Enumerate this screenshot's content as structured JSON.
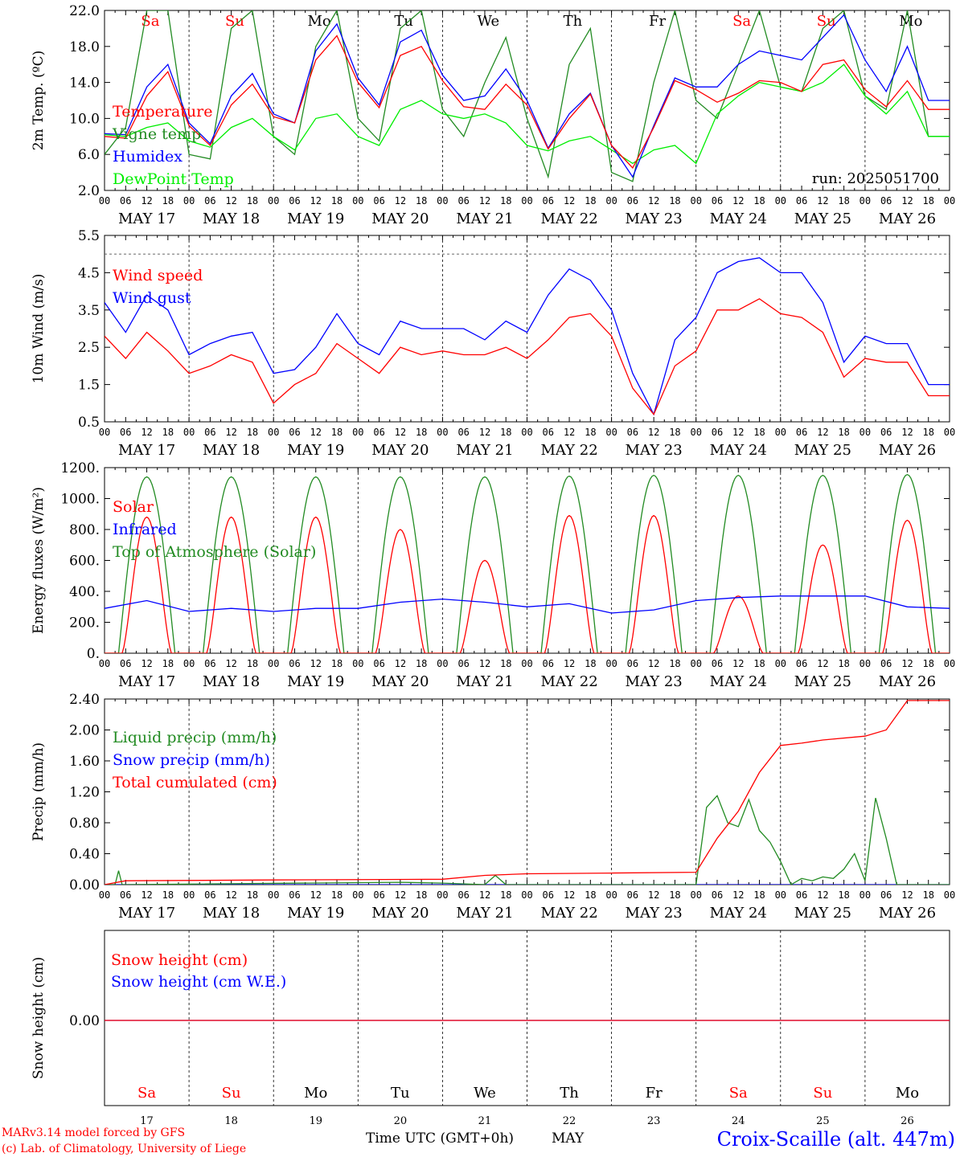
{
  "chart_data": [
    {
      "type": "line",
      "ylabel": "2m Temp. (ºC)",
      "ylim": [
        2.0,
        22.0
      ],
      "yticks": [
        "2.0",
        "6.0",
        "10.0",
        "14.0",
        "18.0",
        "22.0"
      ],
      "run_label": "run: 2025051700",
      "x_hours": [
        0,
        6,
        12,
        18,
        24,
        30,
        36,
        42,
        48,
        54,
        60,
        66,
        72,
        78,
        84,
        90,
        96,
        102,
        108,
        114,
        120,
        126,
        132,
        138,
        144,
        150,
        156,
        162,
        168,
        174,
        180,
        186,
        192,
        198,
        204,
        210,
        216,
        222,
        228,
        234
      ],
      "series": [
        {
          "name": "Temperature",
          "color": "#ff0000",
          "values": [
            8.0,
            7.8,
            12.5,
            15.2,
            9.2,
            7.0,
            11.5,
            13.8,
            10.2,
            9.5,
            16.5,
            19.2,
            14.0,
            11.2,
            17.0,
            18.0,
            14.2,
            11.3,
            11.0,
            13.8,
            11.5,
            6.6,
            10.0,
            12.7,
            7.0,
            4.5,
            9.0,
            14.2,
            13.2,
            11.8,
            12.8,
            14.2,
            14.0,
            13.0,
            16.0,
            16.5,
            13.2,
            11.3,
            14.2,
            11.0
          ]
        },
        {
          "name": "Vigne temp",
          "color": "#228b22",
          "values": [
            6.0,
            9.0,
            22.0,
            22.0,
            6.0,
            5.5,
            20.0,
            22.0,
            8.0,
            6.0,
            18.0,
            22.0,
            10.0,
            7.5,
            20.0,
            22.0,
            11.0,
            8.0,
            14.0,
            19.0,
            10.0,
            3.5,
            16.0,
            20.0,
            4.0,
            3.0,
            14.0,
            22.0,
            12.0,
            10.0,
            16.0,
            22.0,
            13.5,
            13.0,
            20.0,
            22.0,
            12.5,
            11.0,
            22.0,
            8.0
          ]
        },
        {
          "name": "Humidex",
          "color": "#0000ff",
          "values": [
            8.3,
            8.2,
            13.5,
            16.0,
            9.5,
            7.2,
            12.5,
            15.0,
            10.5,
            9.5,
            17.5,
            20.5,
            14.5,
            11.5,
            18.5,
            19.8,
            14.8,
            12.0,
            12.5,
            15.5,
            12.0,
            6.7,
            10.5,
            12.8,
            7.0,
            3.5,
            9.2,
            14.5,
            13.5,
            13.5,
            16.0,
            17.5,
            17.0,
            16.5,
            19.0,
            21.5,
            16.5,
            13.0,
            18.0,
            12.0
          ]
        },
        {
          "name": "DewPoint Temp",
          "color": "#00ee00",
          "values": [
            8.2,
            8.0,
            9.0,
            9.5,
            7.5,
            6.8,
            9.0,
            10.0,
            8.0,
            6.5,
            10.0,
            10.5,
            8.0,
            7.0,
            11.0,
            12.0,
            10.5,
            10.0,
            10.5,
            9.5,
            7.0,
            6.4,
            7.5,
            8.0,
            6.5,
            5.0,
            6.5,
            7.0,
            5.0,
            10.5,
            12.5,
            14.0,
            13.5,
            13.0,
            14.0,
            16.0,
            12.5,
            10.5,
            13.0,
            8.0
          ]
        }
      ]
    },
    {
      "type": "line",
      "ylabel": "10m Wind (m/s)",
      "ylim": [
        0.5,
        5.5
      ],
      "yticks": [
        "0.5",
        "1.5",
        "2.5",
        "3.5",
        "4.5",
        "5.5"
      ],
      "reference_line": 5.0,
      "x_hours": [
        0,
        6,
        12,
        18,
        24,
        30,
        36,
        42,
        48,
        54,
        60,
        66,
        72,
        78,
        84,
        90,
        96,
        102,
        108,
        114,
        120,
        126,
        132,
        138,
        144,
        150,
        156,
        162,
        168,
        174,
        180,
        186,
        192,
        198,
        204,
        210,
        216,
        222,
        228,
        234
      ],
      "series": [
        {
          "name": "Wind speed",
          "color": "#ff0000",
          "values": [
            2.8,
            2.2,
            2.9,
            2.4,
            1.8,
            2.0,
            2.3,
            2.1,
            1.0,
            1.5,
            1.8,
            2.6,
            2.2,
            1.8,
            2.5,
            2.3,
            2.4,
            2.3,
            2.3,
            2.5,
            2.2,
            2.7,
            3.3,
            3.4,
            2.8,
            1.4,
            0.7,
            2.0,
            2.4,
            3.5,
            3.5,
            3.8,
            3.4,
            3.3,
            2.9,
            1.7,
            2.2,
            2.1,
            2.1,
            1.2
          ]
        },
        {
          "name": "Wind gust",
          "color": "#0000ff",
          "values": [
            3.7,
            2.9,
            3.9,
            3.5,
            2.3,
            2.6,
            2.8,
            2.9,
            1.8,
            1.9,
            2.5,
            3.4,
            2.6,
            2.3,
            3.2,
            3.0,
            3.0,
            3.0,
            2.7,
            3.2,
            2.9,
            3.9,
            4.6,
            4.3,
            3.5,
            1.8,
            0.7,
            2.7,
            3.3,
            4.5,
            4.8,
            4.9,
            4.5,
            4.5,
            3.7,
            2.1,
            2.8,
            2.6,
            2.6,
            1.5
          ]
        }
      ]
    },
    {
      "type": "line",
      "ylabel": "Energy fluxes (W/m²)",
      "ylim": [
        0,
        1200
      ],
      "yticks": [
        "0.",
        "200.",
        "400.",
        "600.",
        "800.",
        "1000.",
        "1200."
      ],
      "series": [
        {
          "name": "Solar",
          "color": "#ff0000",
          "day_peaks": [
            880,
            880,
            880,
            800,
            600,
            890,
            890,
            370,
            700,
            860
          ]
        },
        {
          "name": "Infrared",
          "color": "#0000ff",
          "x_hours": [
            0,
            12,
            24,
            36,
            48,
            60,
            72,
            84,
            96,
            108,
            120,
            132,
            144,
            156,
            168,
            180,
            192,
            204,
            216,
            228,
            240
          ],
          "values": [
            290,
            340,
            270,
            290,
            270,
            290,
            290,
            330,
            350,
            330,
            300,
            320,
            260,
            280,
            340,
            360,
            370,
            370,
            370,
            300,
            290
          ]
        },
        {
          "name": "Top of Atmosphere (Solar)",
          "color": "#228b22",
          "day_peaks": [
            1140,
            1140,
            1140,
            1140,
            1140,
            1145,
            1150,
            1150,
            1150,
            1155
          ]
        }
      ]
    },
    {
      "type": "line",
      "ylabel": "Precip (mm/h)",
      "ylim": [
        0.0,
        2.4
      ],
      "yticks": [
        "0.00",
        "0.40",
        "0.80",
        "1.20",
        "1.60",
        "2.00",
        "2.40"
      ],
      "series": [
        {
          "name": "Liquid precip (mm/h)",
          "color": "#228b22",
          "x_hours": [
            0,
            3,
            4,
            5,
            6,
            84,
            96,
            108,
            111,
            114,
            168,
            171,
            174,
            177,
            180,
            183,
            186,
            189,
            192,
            195,
            198,
            201,
            204,
            207,
            210,
            213,
            216,
            219,
            222,
            225,
            228,
            231,
            234,
            240
          ],
          "values": [
            0,
            0,
            0.18,
            0,
            0,
            0.03,
            0.02,
            0,
            0.12,
            0,
            0,
            1.0,
            1.15,
            0.8,
            0.75,
            1.1,
            0.7,
            0.55,
            0.3,
            0,
            0.08,
            0.05,
            0.1,
            0.08,
            0.2,
            0.4,
            0.05,
            1.12,
            0.6,
            0,
            0,
            0,
            0,
            0
          ]
        },
        {
          "name": "Snow precip (mm/h)",
          "color": "#0000ff",
          "x_hours": [
            0,
            240
          ],
          "values": [
            0,
            0
          ]
        },
        {
          "name": "Total cumulated (cm)",
          "color": "#ff0000",
          "x_hours": [
            0,
            6,
            48,
            96,
            108,
            120,
            144,
            168,
            174,
            180,
            186,
            192,
            198,
            204,
            216,
            222,
            228,
            234,
            240
          ],
          "values": [
            0,
            0.05,
            0.06,
            0.07,
            0.12,
            0.14,
            0.15,
            0.16,
            0.6,
            0.95,
            1.45,
            1.8,
            1.83,
            1.87,
            1.92,
            2.0,
            2.38,
            2.38,
            2.38
          ]
        }
      ]
    },
    {
      "type": "line",
      "ylabel": "Snow height (cm)",
      "yticks": [
        "0.00"
      ],
      "series": [
        {
          "name": "Snow height (cm)",
          "color": "#ff0000",
          "values": [
            0,
            0
          ]
        },
        {
          "name": "Snow height (cm W.E.)",
          "color": "#0000ff",
          "values": [
            0,
            0
          ]
        }
      ]
    }
  ],
  "days": [
    {
      "abbr": "Sa",
      "date": "MAY 17",
      "num": "17",
      "weekend": true
    },
    {
      "abbr": "Su",
      "date": "MAY 18",
      "num": "18",
      "weekend": true
    },
    {
      "abbr": "Mo",
      "date": "MAY 19",
      "num": "19",
      "weekend": false
    },
    {
      "abbr": "Tu",
      "date": "MAY 20",
      "num": "20",
      "weekend": false
    },
    {
      "abbr": "We",
      "date": "MAY 21",
      "num": "21",
      "weekend": false
    },
    {
      "abbr": "Th",
      "date": "MAY 22",
      "num": "22",
      "weekend": false
    },
    {
      "abbr": "Fr",
      "date": "MAY 23",
      "num": "23",
      "weekend": false
    },
    {
      "abbr": "Sa",
      "date": "MAY 24",
      "num": "24",
      "weekend": true
    },
    {
      "abbr": "Su",
      "date": "MAY 25",
      "num": "25",
      "weekend": true
    },
    {
      "abbr": "Mo",
      "date": "MAY 26",
      "num": "26",
      "weekend": false
    }
  ],
  "hour_labels": [
    "00",
    "06",
    "12",
    "18"
  ],
  "hour_end_label": "00",
  "colors": {
    "weekend": "#ff0000",
    "weekday": "#000000",
    "footer_title": "#0000ff",
    "credit": "#ff0000"
  },
  "footer": {
    "credit_line1": "MARv3.14 model forced by GFS",
    "credit_line2": "(c) Lab. of Climatology, University of Liege",
    "time_axis": "Time UTC (GMT+0h)",
    "month": "MAY",
    "station": "Croix-Scaille (alt. 447m)"
  }
}
